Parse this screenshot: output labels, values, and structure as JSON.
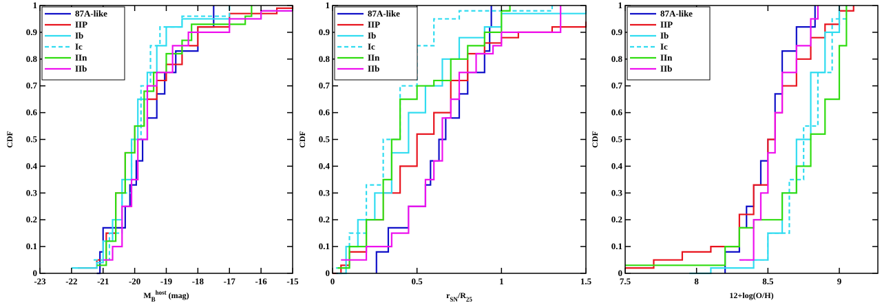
{
  "chart_data": [
    {
      "type": "step",
      "xlim": [
        -23,
        -15
      ],
      "ylim": [
        0,
        1
      ],
      "xticks": [
        -23,
        -22,
        -21,
        -20,
        -19,
        -18,
        -17,
        -16,
        -15
      ],
      "yticks": [
        0,
        0.1,
        0.2,
        0.3,
        0.4,
        0.5,
        0.6,
        0.7,
        0.8,
        0.9,
        1
      ],
      "ylabel": "CDF",
      "xlabel": [
        {
          "text": "M"
        },
        {
          "text": "B",
          "style": "sub"
        },
        {
          "text": "host",
          "style": "sup"
        },
        {
          "text": " (mag)"
        }
      ],
      "legend": "upper left",
      "series": [
        {
          "name": "87A-like",
          "color": "#1010c8",
          "dash": false,
          "x": [
            -21.2,
            -21.1,
            -21.0,
            -20.3,
            -20.15,
            -19.95,
            -19.75,
            -19.6,
            -19.3,
            -19.05,
            -18.7,
            -18.0,
            -17.5
          ],
          "values": [
            0,
            0.08,
            0.17,
            0.25,
            0.33,
            0.42,
            0.5,
            0.58,
            0.67,
            0.75,
            0.83,
            0.92,
            1.0
          ]
        },
        {
          "name": "IIP",
          "color": "#e8141e",
          "dash": false,
          "x": [
            -21.8,
            -21.2,
            -20.9,
            -20.6,
            -20.3,
            -20.0,
            -19.7,
            -19.3,
            -19.0,
            -18.5,
            -18.0,
            -17.0,
            -15.5,
            -15.0
          ],
          "values": [
            0.02,
            0.05,
            0.15,
            0.3,
            0.45,
            0.55,
            0.65,
            0.72,
            0.78,
            0.85,
            0.92,
            0.97,
            0.99,
            1.0
          ]
        },
        {
          "name": "Ib",
          "color": "#30dcf0",
          "dash": false,
          "x": [
            -22.0,
            -21.2,
            -21.0,
            -20.7,
            -20.4,
            -20.1,
            -19.9,
            -19.6,
            -19.3,
            -19.0,
            -18.5,
            -16.0,
            -15.0
          ],
          "values": [
            0.02,
            0.04,
            0.12,
            0.2,
            0.35,
            0.5,
            0.65,
            0.75,
            0.85,
            0.92,
            0.95,
            0.98,
            0.98
          ]
        },
        {
          "name": "Ic",
          "color": "#30dcf0",
          "dash": true,
          "x": [
            -21.3,
            -20.8,
            -20.4,
            -20.1,
            -19.8,
            -19.5,
            -19.2,
            -18.5,
            -17.0
          ],
          "values": [
            0.05,
            0.15,
            0.3,
            0.5,
            0.7,
            0.85,
            0.92,
            0.96,
            1.0
          ]
        },
        {
          "name": "IIn",
          "color": "#30dc10",
          "dash": false,
          "x": [
            -21.2,
            -20.9,
            -20.6,
            -20.3,
            -20.0,
            -19.7,
            -19.4,
            -19.0,
            -18.5,
            -18.2,
            -16.5,
            -16.3
          ],
          "values": [
            0.03,
            0.12,
            0.3,
            0.45,
            0.55,
            0.68,
            0.75,
            0.82,
            0.87,
            0.93,
            0.96,
            1.0
          ]
        },
        {
          "name": "IIb",
          "color": "#ee10ee",
          "dash": false,
          "x": [
            -21.0,
            -20.7,
            -20.4,
            -20.1,
            -19.9,
            -19.6,
            -19.3,
            -18.8,
            -18.3,
            -17.0,
            -16.0,
            -15.0
          ],
          "values": [
            0.05,
            0.1,
            0.25,
            0.35,
            0.5,
            0.7,
            0.75,
            0.85,
            0.9,
            0.95,
            0.98,
            0.98
          ]
        }
      ]
    },
    {
      "type": "step",
      "xlim": [
        0,
        1.5
      ],
      "ylim": [
        0,
        1
      ],
      "xticks": [
        0,
        0.5,
        1,
        1.5
      ],
      "yticks": [
        0,
        0.1,
        0.2,
        0.3,
        0.4,
        0.5,
        0.6,
        0.7,
        0.8,
        0.9,
        1
      ],
      "ylabel": "CDF",
      "xlabel": [
        {
          "text": "r"
        },
        {
          "text": "SN",
          "style": "sub"
        },
        {
          "text": "/R"
        },
        {
          "text": "25",
          "style": "sub"
        }
      ],
      "legend": "upper left",
      "series": [
        {
          "name": "87A-like",
          "color": "#1010c8",
          "dash": false,
          "x": [
            0.26,
            0.26,
            0.33,
            0.45,
            0.55,
            0.58,
            0.63,
            0.67,
            0.75,
            0.8,
            0.9,
            0.93,
            0.94
          ],
          "values": [
            0,
            0.08,
            0.17,
            0.25,
            0.33,
            0.42,
            0.5,
            0.58,
            0.67,
            0.75,
            0.83,
            0.92,
            1.0
          ]
        },
        {
          "name": "IIP",
          "color": "#e8141e",
          "dash": false,
          "x": [
            0,
            0.05,
            0.1,
            0.2,
            0.3,
            0.4,
            0.5,
            0.6,
            0.7,
            0.8,
            0.9,
            1.0,
            1.1,
            1.3,
            1.5
          ],
          "values": [
            0,
            0.03,
            0.08,
            0.2,
            0.3,
            0.4,
            0.52,
            0.6,
            0.72,
            0.82,
            0.86,
            0.88,
            0.9,
            0.92,
            0.94
          ]
        },
        {
          "name": "Ib",
          "color": "#30dcf0",
          "dash": false,
          "x": [
            0.02,
            0.08,
            0.15,
            0.25,
            0.35,
            0.45,
            0.55,
            0.65,
            0.75,
            0.9,
            1.0,
            1.5
          ],
          "values": [
            0,
            0.1,
            0.2,
            0.3,
            0.45,
            0.6,
            0.7,
            0.8,
            0.88,
            0.92,
            0.97,
            0.98
          ]
        },
        {
          "name": "Ic",
          "color": "#30dcf0",
          "dash": true,
          "x": [
            0.02,
            0.1,
            0.2,
            0.3,
            0.4,
            0.5,
            0.6,
            0.75,
            1.3
          ],
          "values": [
            0.02,
            0.15,
            0.33,
            0.5,
            0.7,
            0.85,
            0.95,
            0.98,
            1.0
          ]
        },
        {
          "name": "IIn",
          "color": "#30dc10",
          "dash": false,
          "x": [
            0.03,
            0.1,
            0.2,
            0.3,
            0.35,
            0.4,
            0.5,
            0.6,
            0.7,
            0.8,
            0.9,
            1.0,
            1.05
          ],
          "values": [
            0.02,
            0.1,
            0.2,
            0.35,
            0.5,
            0.65,
            0.7,
            0.72,
            0.8,
            0.85,
            0.9,
            0.98,
            1.0
          ]
        },
        {
          "name": "IIb",
          "color": "#ee10ee",
          "dash": false,
          "x": [
            0.05,
            0.2,
            0.35,
            0.45,
            0.55,
            0.6,
            0.65,
            0.7,
            0.75,
            0.85,
            0.95,
            1.0,
            1.35
          ],
          "values": [
            0.05,
            0.1,
            0.15,
            0.25,
            0.35,
            0.42,
            0.58,
            0.65,
            0.75,
            0.82,
            0.85,
            0.9,
            1.0
          ]
        }
      ]
    },
    {
      "type": "step",
      "xlim": [
        7.5,
        9.27
      ],
      "ylim": [
        0,
        1
      ],
      "xticks": [
        7.5,
        8,
        8.5,
        9
      ],
      "yticks": [
        0,
        0.1,
        0.2,
        0.3,
        0.4,
        0.5,
        0.6,
        0.7,
        0.8,
        0.9,
        1
      ],
      "ylabel": "CDF",
      "xlabel": [
        {
          "text": "12+log(O/H)"
        }
      ],
      "legend": "upper left",
      "series": [
        {
          "name": "87A-like",
          "color": "#1010c8",
          "dash": false,
          "x": [
            8.2,
            8.2,
            8.3,
            8.35,
            8.4,
            8.45,
            8.5,
            8.55,
            8.6,
            8.7,
            8.83
          ],
          "values": [
            0,
            0.08,
            0.17,
            0.25,
            0.33,
            0.42,
            0.5,
            0.67,
            0.83,
            0.92,
            1.0
          ]
        },
        {
          "name": "IIP",
          "color": "#e8141e",
          "dash": false,
          "x": [
            7.5,
            7.7,
            7.9,
            8.1,
            8.3,
            8.4,
            8.5,
            8.55,
            8.6,
            8.7,
            8.8,
            8.9,
            9.0,
            9.1
          ],
          "values": [
            0.02,
            0.05,
            0.08,
            0.1,
            0.22,
            0.33,
            0.5,
            0.6,
            0.7,
            0.8,
            0.88,
            0.93,
            0.98,
            1.0
          ]
        },
        {
          "name": "Ib",
          "color": "#30dcf0",
          "dash": false,
          "x": [
            7.95,
            8.1,
            8.4,
            8.5,
            8.6,
            8.7,
            8.8,
            8.9,
            9.0
          ],
          "values": [
            0,
            0.02,
            0.05,
            0.15,
            0.3,
            0.5,
            0.75,
            0.9,
            1.0
          ]
        },
        {
          "name": "Ic",
          "color": "#30dcf0",
          "dash": true,
          "x": [
            8.3,
            8.5,
            8.65,
            8.75,
            8.85,
            8.95,
            9.05
          ],
          "values": [
            0.05,
            0.15,
            0.35,
            0.55,
            0.75,
            0.95,
            1.0
          ]
        },
        {
          "name": "IIn",
          "color": "#30dc10",
          "dash": false,
          "x": [
            7.5,
            8.2,
            8.3,
            8.4,
            8.6,
            8.7,
            8.8,
            8.9,
            9.0,
            9.05
          ],
          "values": [
            0.03,
            0.1,
            0.17,
            0.2,
            0.3,
            0.4,
            0.52,
            0.65,
            0.85,
            1.0
          ]
        },
        {
          "name": "IIb",
          "color": "#ee10ee",
          "dash": false,
          "x": [
            8.3,
            8.4,
            8.45,
            8.5,
            8.55,
            8.6,
            8.7,
            8.8,
            8.85
          ],
          "values": [
            0.05,
            0.2,
            0.3,
            0.45,
            0.6,
            0.75,
            0.85,
            0.95,
            1.0
          ]
        }
      ]
    }
  ]
}
